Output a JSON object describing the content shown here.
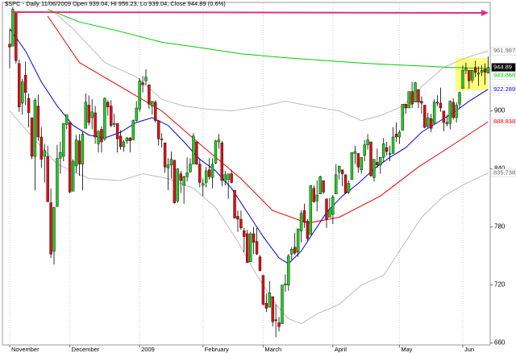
{
  "chart_data": {
    "type": "candlestick",
    "title": "$SPC - Daily 11/06/2009 Open 939.04, Hi 956.23, Lo 939.04, Close 944.89 (0.6%)",
    "up_color": "#22cc22",
    "down_color": "#dd1111",
    "ylim": [
      658,
      1008
    ],
    "yticks": [
      660,
      720,
      780,
      840,
      900
    ],
    "grid": true,
    "xticks": [
      {
        "value": 0,
        "label": "November"
      },
      {
        "value": 19,
        "label": "December"
      },
      {
        "value": 41,
        "label": "2009"
      },
      {
        "value": 61,
        "label": "February"
      },
      {
        "value": 80,
        "label": "March"
      },
      {
        "value": 102,
        "label": "April"
      },
      {
        "value": 123,
        "label": "May"
      },
      {
        "value": 143,
        "label": "Jun"
      }
    ],
    "close_label": "944.89",
    "ohlc": [
      [
        969,
        984,
        944,
        966
      ],
      [
        967,
        1007,
        967,
        1005
      ],
      [
        1002,
        1003,
        949,
        952
      ],
      [
        949,
        953,
        899,
        904
      ],
      [
        908,
        933,
        896,
        930
      ],
      [
        937,
        951,
        906,
        919
      ],
      [
        913,
        918,
        883,
        898
      ],
      [
        893,
        893,
        850,
        853
      ],
      [
        853,
        913,
        818,
        911
      ],
      [
        905,
        917,
        869,
        873
      ],
      [
        873,
        883,
        841,
        850
      ],
      [
        853,
        866,
        826,
        859
      ],
      [
        853,
        864,
        806,
        806
      ],
      [
        805,
        820,
        748,
        752
      ],
      [
        755,
        801,
        741,
        800
      ],
      [
        801,
        865,
        801,
        851
      ],
      [
        851,
        868,
        835,
        857
      ],
      [
        853,
        887,
        848,
        887
      ],
      [
        886,
        896,
        881,
        896
      ],
      [
        888,
        888,
        815,
        816
      ],
      [
        817,
        850,
        817,
        848
      ],
      [
        843,
        875,
        836,
        870
      ],
      [
        869,
        876,
        833,
        845
      ],
      [
        845,
        879,
        818,
        876
      ],
      [
        882,
        918,
        882,
        909
      ],
      [
        906,
        916,
        885,
        888
      ],
      [
        893,
        912,
        881,
        899
      ],
      [
        898,
        905,
        866,
        873
      ],
      [
        866,
        880,
        857,
        879
      ],
      [
        881,
        884,
        857,
        868
      ],
      [
        871,
        914,
        869,
        913
      ],
      [
        909,
        911,
        895,
        904
      ],
      [
        905,
        911,
        883,
        885
      ],
      [
        886,
        897,
        883,
        887
      ],
      [
        887,
        887,
        857,
        871
      ],
      [
        874,
        880,
        860,
        863
      ],
      [
        863,
        870,
        858,
        868
      ],
      [
        869,
        873,
        866,
        872
      ],
      [
        872,
        873,
        857,
        869
      ],
      [
        870,
        891,
        870,
        890
      ],
      [
        890,
        910,
        889,
        903
      ],
      [
        902,
        934,
        899,
        931
      ],
      [
        929,
        936,
        919,
        927
      ],
      [
        931,
        943,
        927,
        935
      ],
      [
        927,
        927,
        902,
        907
      ],
      [
        905,
        910,
        896,
        910
      ],
      [
        909,
        911,
        888,
        890
      ],
      [
        890,
        890,
        864,
        871
      ],
      [
        870,
        877,
        862,
        871
      ],
      [
        867,
        867,
        836,
        842
      ],
      [
        841,
        851,
        818,
        844
      ],
      [
        844,
        858,
        830,
        850
      ],
      [
        849,
        849,
        804,
        805
      ],
      [
        807,
        841,
        805,
        840
      ],
      [
        835,
        838,
        815,
        828
      ],
      [
        823,
        833,
        804,
        832
      ],
      [
        832,
        852,
        827,
        836
      ],
      [
        837,
        851,
        836,
        845
      ],
      [
        845,
        877,
        845,
        874
      ],
      [
        868,
        868,
        844,
        845
      ],
      [
        845,
        851,
        821,
        826
      ],
      [
        823,
        830,
        812,
        825
      ],
      [
        826,
        842,
        821,
        838
      ],
      [
        839,
        851,
        829,
        832
      ],
      [
        831,
        851,
        820,
        845
      ],
      [
        846,
        870,
        845,
        869
      ],
      [
        868,
        876,
        861,
        870
      ],
      [
        867,
        869,
        822,
        828
      ],
      [
        827,
        838,
        823,
        834
      ],
      [
        829,
        835,
        809,
        835
      ],
      [
        835,
        839,
        825,
        826
      ],
      [
        818,
        818,
        789,
        789
      ],
      [
        791,
        797,
        775,
        788
      ],
      [
        788,
        797,
        777,
        779
      ],
      [
        776,
        779,
        754,
        770
      ],
      [
        773,
        777,
        743,
        743
      ],
      [
        744,
        775,
        744,
        773
      ],
      [
        773,
        780,
        752,
        764
      ],
      [
        765,
        779,
        751,
        752
      ],
      [
        749,
        751,
        734,
        735
      ],
      [
        730,
        730,
        699,
        700
      ],
      [
        701,
        711,
        692,
        696
      ],
      [
        697,
        724,
        697,
        712
      ],
      [
        708,
        708,
        677,
        682
      ],
      [
        684,
        700,
        666,
        683
      ],
      [
        681,
        687,
        672,
        677
      ],
      [
        680,
        720,
        680,
        720
      ],
      [
        720,
        731,
        713,
        721
      ],
      [
        720,
        752,
        714,
        750
      ],
      [
        752,
        759,
        746,
        757
      ],
      [
        759,
        774,
        751,
        753
      ],
      [
        754,
        778,
        749,
        778
      ],
      [
        776,
        797,
        764,
        794
      ],
      [
        797,
        804,
        779,
        785
      ],
      [
        786,
        788,
        766,
        768
      ],
      [
        772,
        823,
        772,
        823
      ],
      [
        820,
        823,
        805,
        806
      ],
      [
        807,
        828,
        796,
        813
      ],
      [
        814,
        833,
        814,
        832
      ],
      [
        828,
        828,
        814,
        816
      ],
      [
        809,
        809,
        779,
        788
      ],
      [
        790,
        810,
        790,
        798
      ],
      [
        793,
        813,
        783,
        811
      ],
      [
        814,
        845,
        814,
        834
      ],
      [
        837,
        843,
        829,
        843
      ],
      [
        839,
        839,
        822,
        835
      ],
      [
        834,
        834,
        814,
        815
      ],
      [
        816,
        828,
        814,
        825
      ],
      [
        829,
        857,
        829,
        857
      ],
      [
        856,
        864,
        845,
        858
      ],
      [
        856,
        856,
        836,
        842
      ],
      [
        839,
        852,
        835,
        852
      ],
      [
        854,
        870,
        848,
        865
      ],
      [
        865,
        876,
        860,
        870
      ],
      [
        868,
        868,
        832,
        833
      ],
      [
        831,
        850,
        827,
        850
      ],
      [
        847,
        861,
        841,
        844
      ],
      [
        844,
        852,
        835,
        852
      ],
      [
        852,
        872,
        847,
        866
      ],
      [
        862,
        868,
        854,
        858
      ],
      [
        855,
        864,
        848,
        856
      ],
      [
        856,
        883,
        856,
        873
      ],
      [
        876,
        888,
        868,
        873
      ],
      [
        873,
        880,
        866,
        878
      ],
      [
        880,
        907,
        880,
        907
      ],
      [
        907,
        907,
        897,
        903
      ],
      [
        903,
        920,
        903,
        920
      ],
      [
        920,
        930,
        903,
        907
      ],
      [
        909,
        930,
        909,
        929
      ],
      [
        922,
        922,
        903,
        909
      ],
      [
        910,
        915,
        897,
        908
      ],
      [
        906,
        906,
        882,
        883
      ],
      [
        884,
        898,
        882,
        893
      ],
      [
        892,
        897,
        878,
        882
      ],
      [
        887,
        912,
        887,
        909
      ],
      [
        909,
        916,
        905,
        908
      ],
      [
        908,
        924,
        899,
        903
      ],
      [
        900,
        900,
        879,
        888
      ],
      [
        888,
        896,
        884,
        887
      ],
      [
        887,
        911,
        881,
        910
      ],
      [
        909,
        913,
        891,
        893
      ],
      [
        893,
        909,
        888,
        906
      ],
      [
        907,
        920,
        903,
        919
      ],
      [
        923,
        947,
        923,
        942
      ],
      [
        942,
        950,
        938,
        944
      ],
      [
        942,
        942,
        923,
        931
      ],
      [
        932,
        942,
        929,
        942
      ],
      [
        945,
        952,
        935,
        940
      ],
      [
        938,
        946,
        926,
        939
      ],
      [
        940,
        947,
        936,
        942
      ],
      [
        943,
        949,
        927,
        940
      ],
      [
        939.04,
        956.23,
        939.04,
        944.89
      ]
    ],
    "overlays": [
      {
        "color": "#bbbbbb",
        "end_label": "961.987",
        "x": [
          14,
          20,
          30,
          40,
          48,
          55,
          62,
          70,
          80,
          87,
          95,
          104,
          111,
          117,
          124,
          130,
          137,
          144,
          151
        ],
        "values": [
          1002,
          985,
          950,
          935,
          912,
          905,
          902,
          900,
          905,
          910,
          905,
          900,
          890,
          895,
          905,
          925,
          945,
          955,
          961.987
        ]
      },
      {
        "color": "#bbbbbb",
        "end_label": "835.738",
        "x": [
          0,
          8,
          15,
          25,
          35,
          42,
          50,
          58,
          65,
          72,
          78,
          84,
          88,
          92,
          97,
          104,
          111,
          118,
          124,
          130,
          137,
          144,
          151
        ],
        "values": [
          900,
          870,
          845,
          830,
          828,
          835,
          830,
          820,
          800,
          765,
          730,
          700,
          685,
          680,
          690,
          700,
          720,
          730,
          760,
          790,
          812,
          825,
          835.738
        ]
      },
      {
        "color": "#00cc00",
        "end_label": "943.868",
        "x": [
          12,
          22,
          35,
          48,
          61,
          73,
          87,
          100,
          113,
          126,
          139,
          151
        ],
        "values": [
          1005,
          992,
          982,
          971,
          965,
          959,
          955,
          952,
          949,
          947,
          945,
          943.868
        ]
      },
      {
        "color": "#ee0000",
        "end_label": "888.838",
        "x": [
          12,
          22,
          35,
          48,
          61,
          73,
          83,
          94,
          104,
          117,
          129,
          139,
          151
        ],
        "values": [
          998,
          950,
          925,
          900,
          863,
          830,
          797,
          784,
          790,
          812,
          842,
          863,
          888.838
        ]
      },
      {
        "color": "#0000dd",
        "end_label": "922.289",
        "x": [
          0,
          5,
          10,
          15,
          20,
          25,
          30,
          35,
          40,
          45,
          50,
          55,
          60,
          65,
          70,
          75,
          80,
          85,
          88,
          92,
          96,
          100,
          105,
          110,
          115,
          120,
          125,
          130,
          135,
          140,
          145,
          151
        ],
        "values": [
          985,
          962,
          930,
          905,
          885,
          875,
          872,
          878,
          888,
          893,
          885,
          868,
          850,
          838,
          820,
          795,
          770,
          748,
          742,
          755,
          775,
          795,
          812,
          825,
          840,
          852,
          862,
          878,
          888,
          898,
          910,
          922.289
        ]
      }
    ]
  }
}
